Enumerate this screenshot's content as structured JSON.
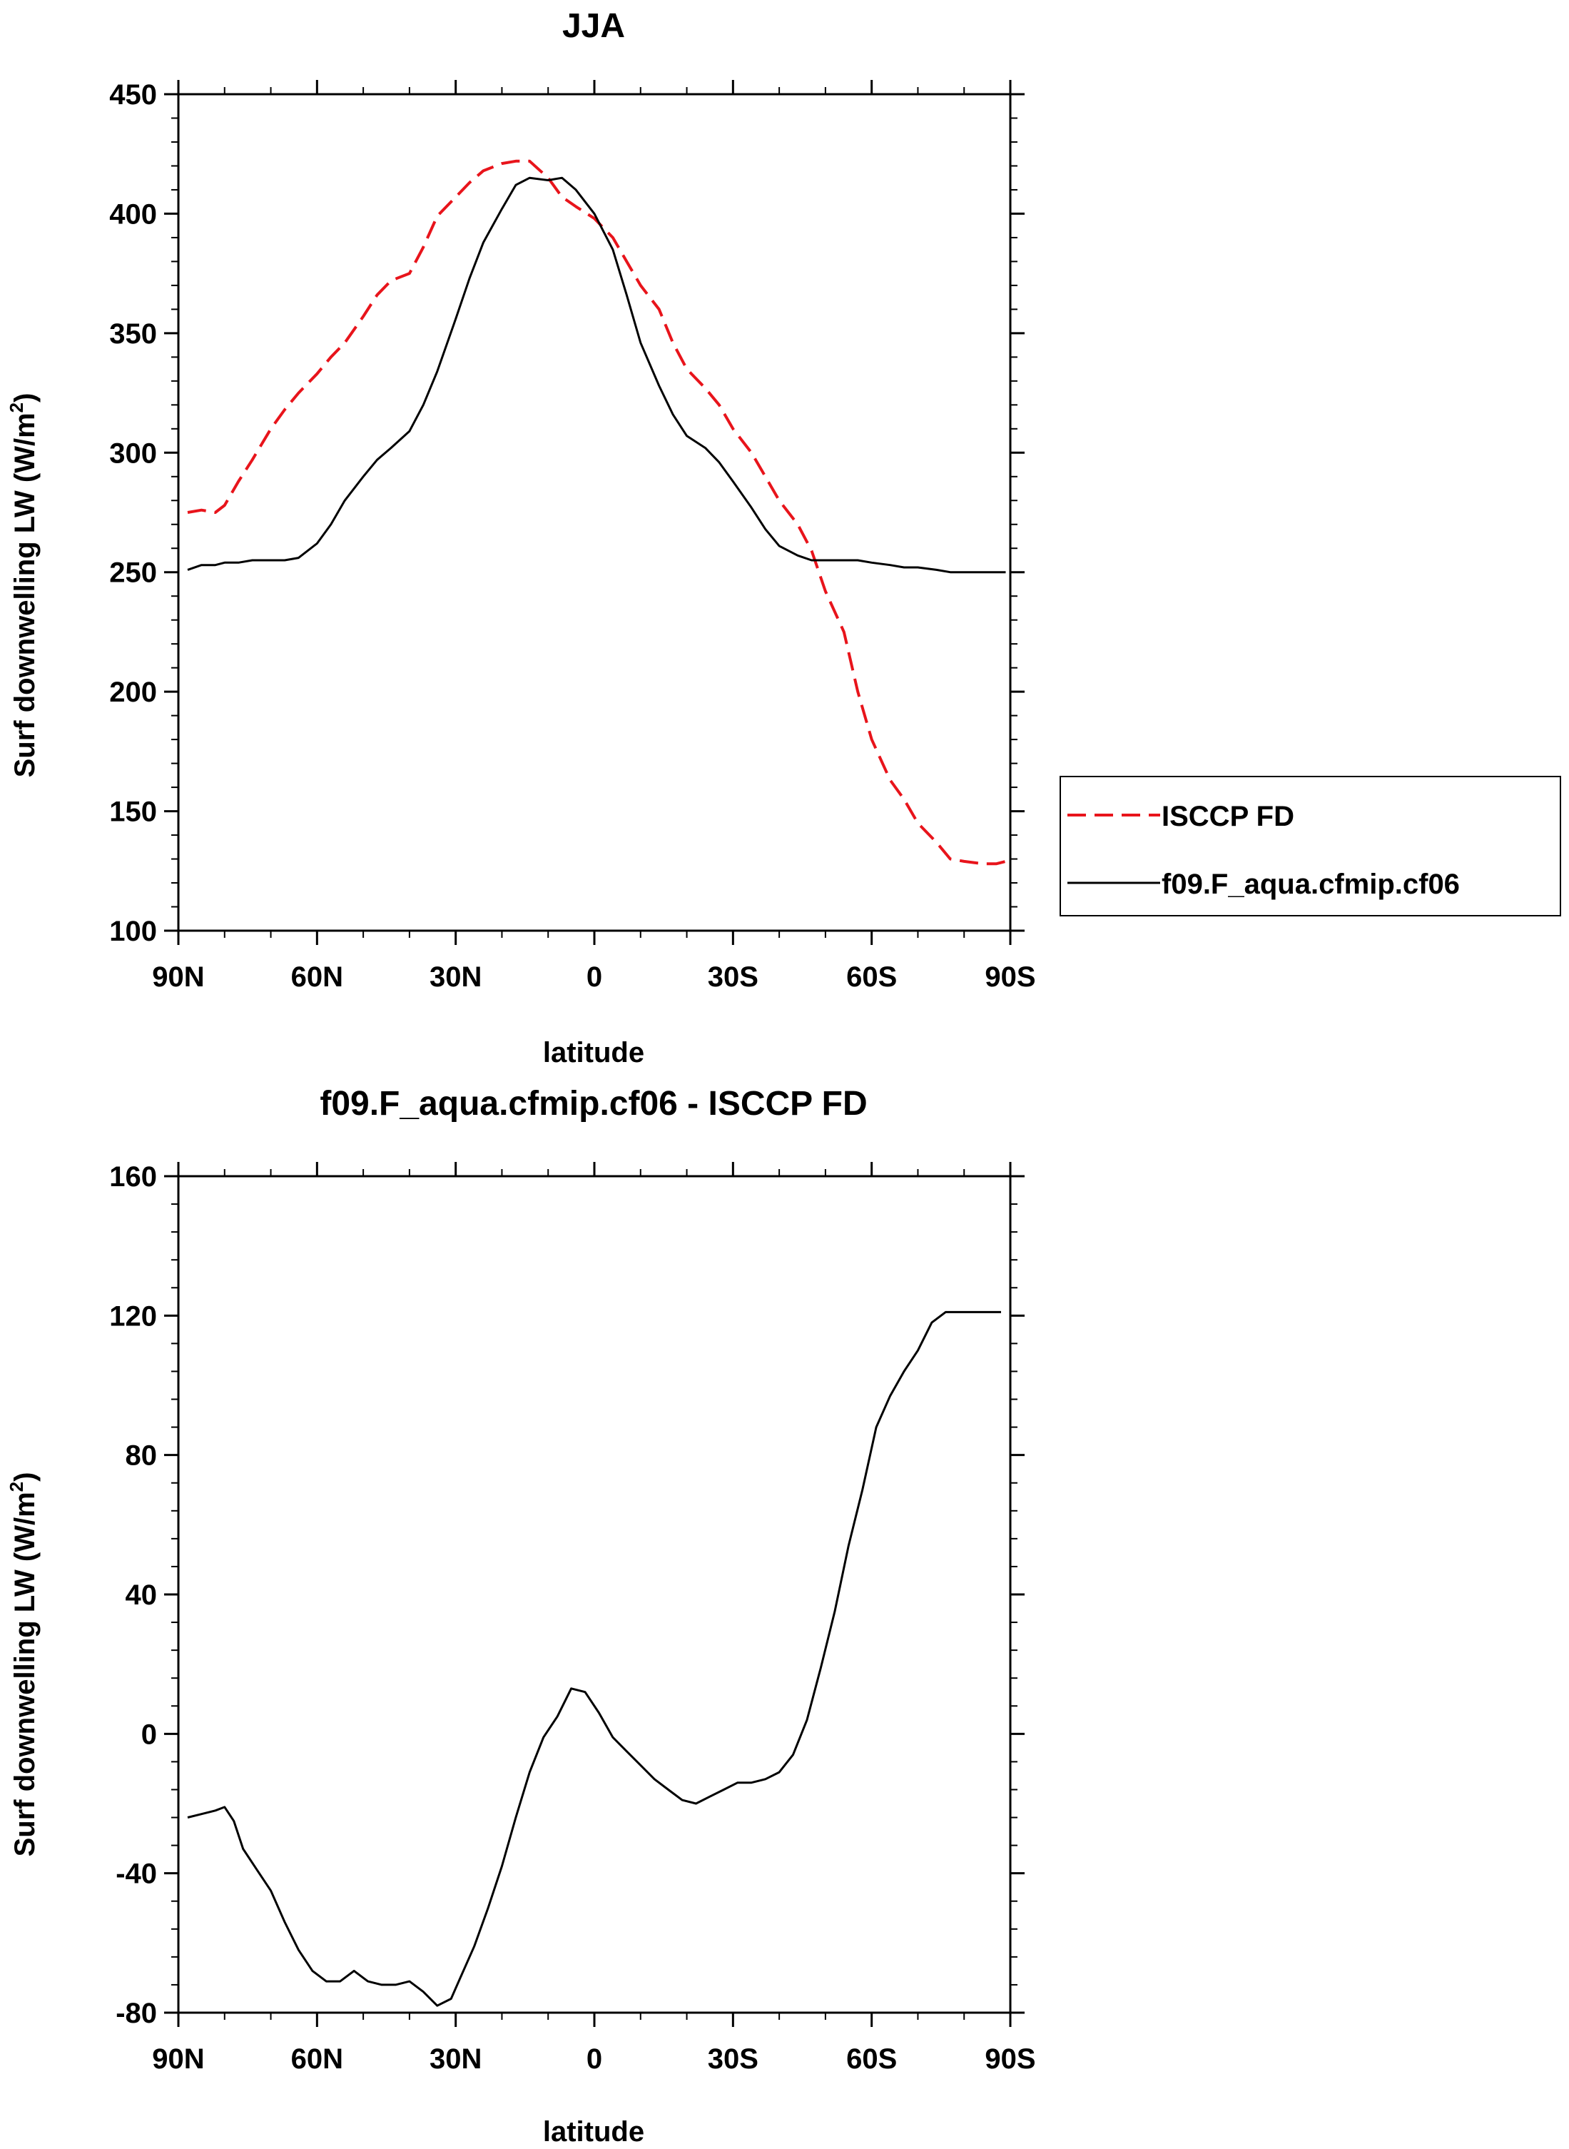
{
  "chart_data": [
    {
      "id": "top",
      "type": "line",
      "title": "JJA",
      "xlabel": "latitude",
      "ylabel": "Surf downwelling LW (W/m",
      "ylabel_sup": "2",
      "ylabel_tail": ")",
      "xlim": [
        90,
        -90
      ],
      "ylim": [
        100,
        450
      ],
      "xticks": [
        {
          "value": 90,
          "label": "90N"
        },
        {
          "value": 60,
          "label": "60N"
        },
        {
          "value": 30,
          "label": "30N"
        },
        {
          "value": 0,
          "label": "0"
        },
        {
          "value": -30,
          "label": "30S"
        },
        {
          "value": -60,
          "label": "60S"
        },
        {
          "value": -90,
          "label": "90S"
        }
      ],
      "yticks": [
        100,
        150,
        200,
        250,
        300,
        350,
        400,
        450
      ],
      "series": [
        {
          "name": "ISCCP FD",
          "color": "#e8141b",
          "dash": "dashed",
          "x": [
            88,
            85,
            82,
            80,
            77,
            74,
            70,
            67,
            64,
            60,
            57,
            54,
            50,
            47,
            44,
            40,
            37,
            34,
            30,
            27,
            24,
            20,
            17,
            14,
            10,
            7,
            4,
            0,
            -4,
            -7,
            -10,
            -14,
            -17,
            -20,
            -24,
            -27,
            -30,
            -34,
            -37,
            -40,
            -44,
            -47,
            -50,
            -54,
            -57,
            -60,
            -64,
            -67,
            -70,
            -74,
            -77,
            -80,
            -84,
            -87,
            -89
          ],
          "values": [
            275,
            276,
            275,
            278,
            288,
            297,
            310,
            318,
            325,
            333,
            340,
            346,
            357,
            366,
            372,
            375,
            386,
            399,
            407,
            413,
            418,
            421,
            422,
            422,
            415,
            407,
            403,
            398,
            390,
            380,
            370,
            360,
            346,
            335,
            327,
            320,
            310,
            300,
            290,
            280,
            270,
            259,
            242,
            225,
            200,
            180,
            163,
            155,
            145,
            137,
            130,
            129,
            128,
            128,
            129
          ]
        },
        {
          "name": "f09.F_aqua.cfmip.cf06",
          "color": "#000000",
          "dash": "solid",
          "x": [
            88,
            85,
            82,
            80,
            77,
            74,
            70,
            67,
            64,
            60,
            57,
            54,
            50,
            47,
            44,
            40,
            37,
            34,
            30,
            27,
            24,
            20,
            17,
            14,
            10,
            7,
            4,
            0,
            -4,
            -7,
            -10,
            -14,
            -17,
            -20,
            -24,
            -27,
            -30,
            -34,
            -37,
            -40,
            -44,
            -47,
            -50,
            -54,
            -57,
            -60,
            -64,
            -67,
            -70,
            -74,
            -77,
            -80,
            -84,
            -87,
            -89
          ],
          "values": [
            251,
            253,
            253,
            254,
            254,
            255,
            255,
            255,
            256,
            262,
            270,
            280,
            290,
            297,
            302,
            309,
            320,
            334,
            356,
            373,
            388,
            402,
            412,
            415,
            414,
            415,
            410,
            400,
            385,
            366,
            346,
            328,
            316,
            307,
            302,
            296,
            288,
            277,
            268,
            261,
            257,
            255,
            255,
            255,
            255,
            254,
            253,
            252,
            252,
            251,
            250,
            250,
            250,
            250,
            250
          ]
        }
      ]
    },
    {
      "id": "bottom",
      "type": "line",
      "title": "f09.F_aqua.cfmip.cf06 - ISCCP FD",
      "xlabel": "latitude",
      "ylabel": "Surf downwelling LW (W/m",
      "ylabel_sup": "2",
      "ylabel_tail": ")",
      "xlim": [
        90,
        -90
      ],
      "ylim": [
        -80,
        160
      ],
      "xticks": [
        {
          "value": 90,
          "label": "90N"
        },
        {
          "value": 60,
          "label": "60N"
        },
        {
          "value": 30,
          "label": "30N"
        },
        {
          "value": 0,
          "label": "0"
        },
        {
          "value": -30,
          "label": "30S"
        },
        {
          "value": -60,
          "label": "60S"
        },
        {
          "value": -90,
          "label": "90S"
        }
      ],
      "yticks": [
        -80,
        -40,
        0,
        40,
        80,
        120,
        160
      ],
      "series": [
        {
          "name": "f09.F_aqua.cfmip.cf06 - ISCCP FD",
          "color": "#000000",
          "dash": "solid",
          "x": [
            88,
            85,
            82,
            80,
            78,
            76,
            73,
            70,
            67,
            64,
            61,
            58,
            55,
            52,
            49,
            46,
            43,
            40,
            37,
            34,
            31,
            29,
            26,
            23,
            20,
            17,
            14,
            11,
            8,
            5,
            2,
            -1,
            -4,
            -7,
            -10,
            -13,
            -16,
            -19,
            -22,
            -25,
            -28,
            -31,
            -34,
            -37,
            -40,
            -43,
            -46,
            -49,
            -52,
            -55,
            -58,
            -61,
            -64,
            -67,
            -70,
            -73,
            -76,
            -79,
            -82,
            -85,
            -88
          ],
          "values": [
            -24,
            -23,
            -22,
            -21,
            -25,
            -33,
            -39,
            -45,
            -54,
            -62,
            -68,
            -71,
            -71,
            -68,
            -71,
            -72,
            -72,
            -71,
            -74,
            -78,
            -76,
            -70,
            -61,
            -50,
            -38,
            -24,
            -11,
            -1,
            5,
            13,
            12,
            6,
            -1,
            -5,
            -9,
            -13,
            -16,
            -19,
            -20,
            -18,
            -16,
            -14,
            -14,
            -13,
            -11,
            -6,
            4,
            19,
            35,
            54,
            70,
            88,
            97,
            104,
            110,
            118,
            121,
            121,
            121,
            121,
            121
          ]
        }
      ]
    }
  ],
  "legend": {
    "entries": [
      {
        "label": "ISCCP FD",
        "color": "#e8141b",
        "dash": "dashed"
      },
      {
        "label": "f09.F_aqua.cfmip.cf06",
        "color": "#000000",
        "dash": "solid"
      }
    ]
  }
}
